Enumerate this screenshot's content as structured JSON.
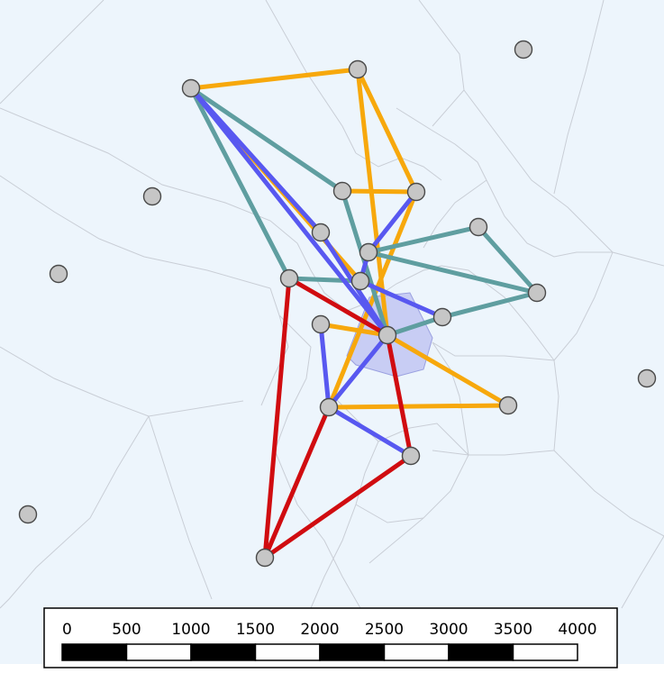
{
  "map": {
    "colors": {
      "background": "#edf5fc",
      "voronoi_lines": "#c9ced6",
      "highlight_fill": "#c8cdf4",
      "highlight_stroke": "#9aa0e0",
      "node_fill": "#c6c6c6",
      "node_stroke": "#4a4a4a",
      "orange": "#f7a80c",
      "teal": "#5f9ea0",
      "blue": "#5858f0",
      "red": "#d00c10"
    },
    "scale_bar": {
      "labels": [
        "0",
        "500",
        "1000",
        "1500",
        "2000",
        "2500",
        "3000",
        "3500",
        "4000"
      ],
      "border_color": "#000000",
      "dark_color": "#000000",
      "light_color": "#ffffff"
    }
  }
}
